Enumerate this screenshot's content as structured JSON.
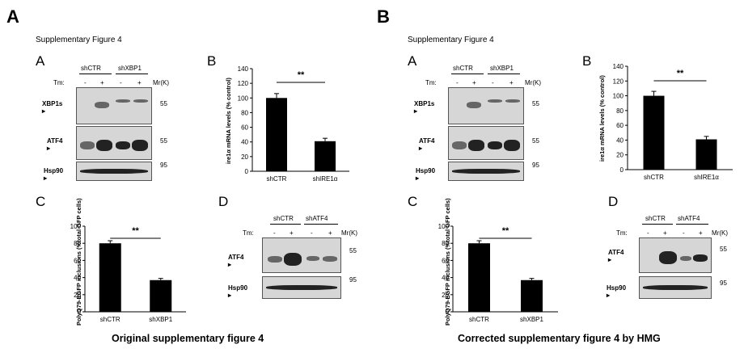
{
  "panels": {
    "left": {
      "letter": "A",
      "supp_title": "Supplementary  Figure 4",
      "caption": "Original supplementary figure 4"
    },
    "right": {
      "letter": "B",
      "supp_title": "Supplementary  Figure 4",
      "caption": "Corrected supplementary figure 4 by HMG"
    }
  },
  "sub": {
    "a": "A",
    "b": "B",
    "c": "C",
    "d": "D"
  },
  "blotA": {
    "groups": [
      "shCTR",
      "shXBP1"
    ],
    "tm_label": "Tm:",
    "tm_values": [
      "-",
      "+",
      "-",
      "+"
    ],
    "mr_label": "Mr(K)",
    "rows": [
      "XBP1s ▸",
      "ATF4 ▸",
      "Hsp90 ▸"
    ],
    "markers": [
      "55",
      "55",
      "95"
    ]
  },
  "blotD": {
    "groups": [
      "shCTR",
      "shATF4"
    ],
    "tm_label": "Tm:",
    "tm_values": [
      "-",
      "+",
      "-",
      "+"
    ],
    "mr_label": "Mr(K)",
    "rows": [
      "ATF4 ▸",
      "Hsp90 ▸"
    ],
    "markers": [
      "55",
      "95"
    ]
  },
  "chart_data": [
    {
      "id": "B",
      "type": "bar",
      "categories": [
        "shCTR",
        "shIRE1α"
      ],
      "values": [
        100,
        41
      ],
      "errors": [
        6,
        4
      ],
      "ylabel": "ire1α mRNA levels (% control)",
      "ylim": [
        0,
        140
      ],
      "yticks": [
        0,
        20,
        40,
        60,
        80,
        100,
        120,
        140
      ],
      "significance": "**"
    },
    {
      "id": "C",
      "type": "bar",
      "categories": [
        "shCTR",
        "shXBP1"
      ],
      "values": [
        80,
        37
      ],
      "errors": [
        3,
        2
      ],
      "ylabel": "PolyQ79-EGFP inclusions (%total GFP cells)",
      "ylim": [
        0,
        100
      ],
      "yticks": [
        0,
        20,
        40,
        60,
        80,
        100
      ],
      "significance": "**"
    }
  ]
}
